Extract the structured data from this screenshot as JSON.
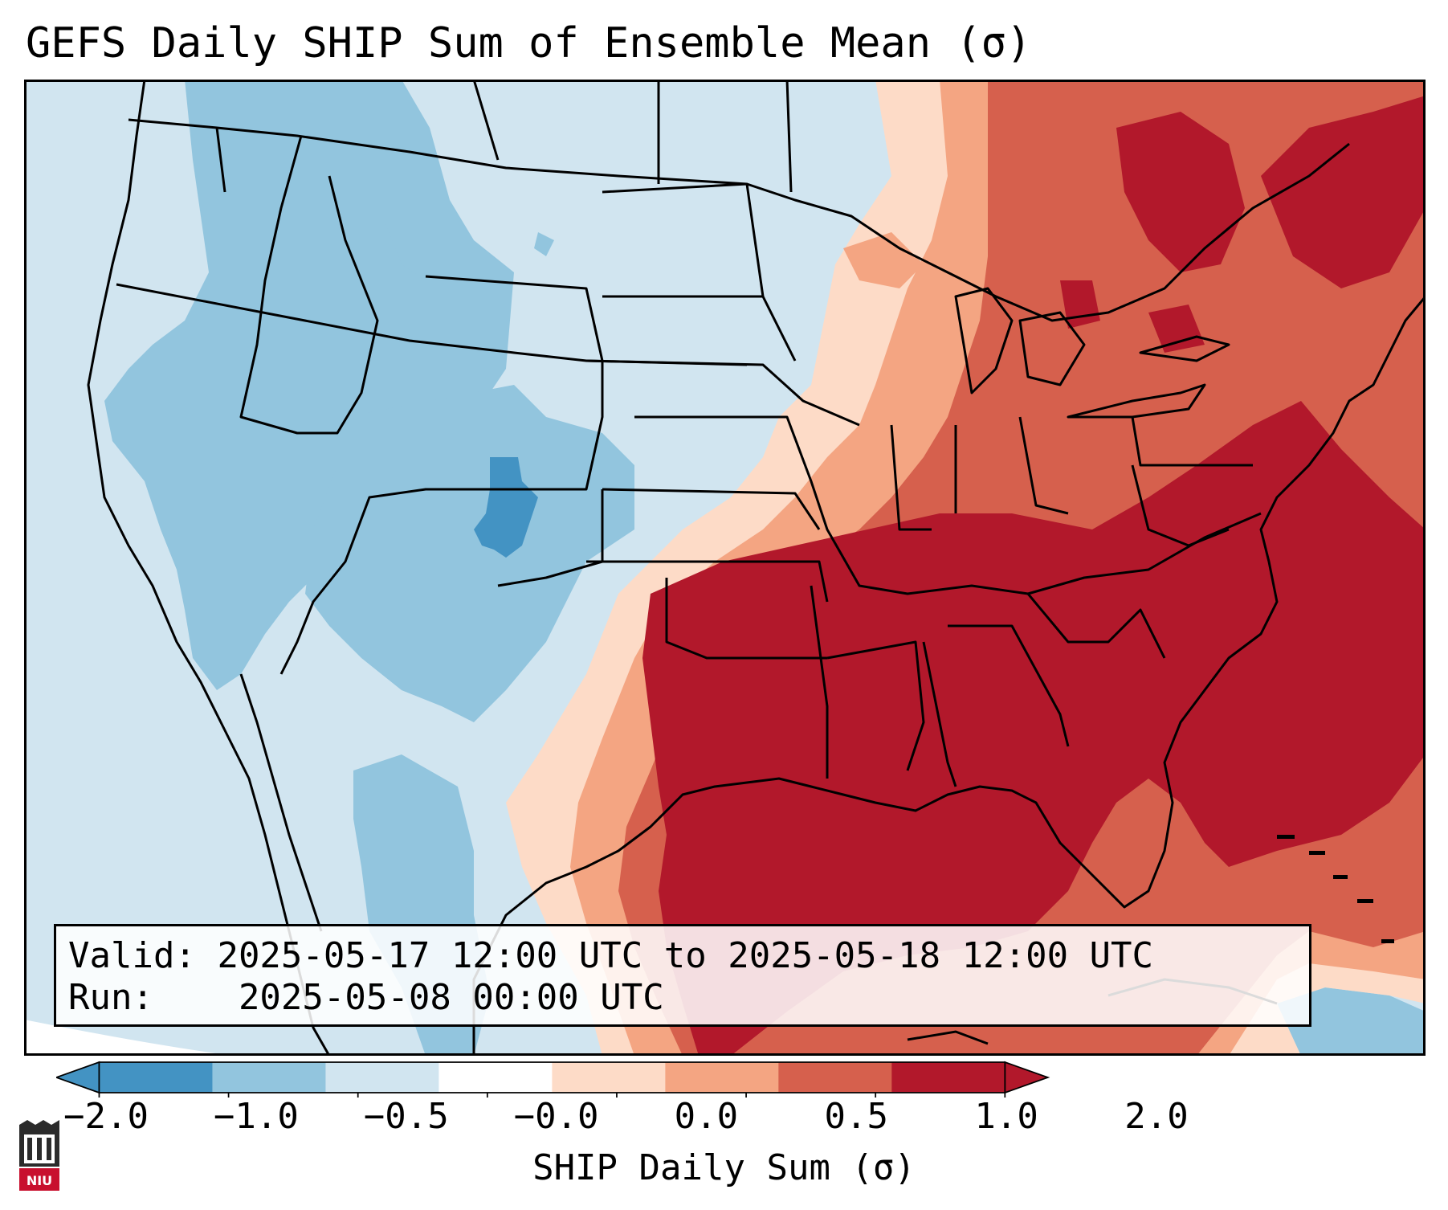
{
  "title": "GEFS Daily SHIP Sum of Ensemble Mean (σ)",
  "info": {
    "valid_label": "Valid:",
    "valid_value": "2025-05-17 12:00 UTC to 2025-05-18 12:00 UTC",
    "run_label": "Run:",
    "run_value": "2025-05-08 00:00 UTC"
  },
  "colorbar": {
    "label": "SHIP Daily Sum (σ)",
    "tick_labels": [
      "−2.0",
      "−1.0",
      "−0.5",
      "−0.0",
      "0.0",
      "0.5",
      "1.0",
      "2.0"
    ],
    "colors": [
      "#4393c3",
      "#92c5de",
      "#d1e5f0",
      "#ffffff",
      "#fddbc7",
      "#f4a582",
      "#d6604d",
      "#b2182b"
    ],
    "extend": "both"
  },
  "logo": {
    "text": "NIU",
    "icon": "niu-castle-logo"
  },
  "map": {
    "region": "Continental United States",
    "borders": "states-coastlines",
    "palette_note": "blue west (negative), red south and east (positive)"
  }
}
